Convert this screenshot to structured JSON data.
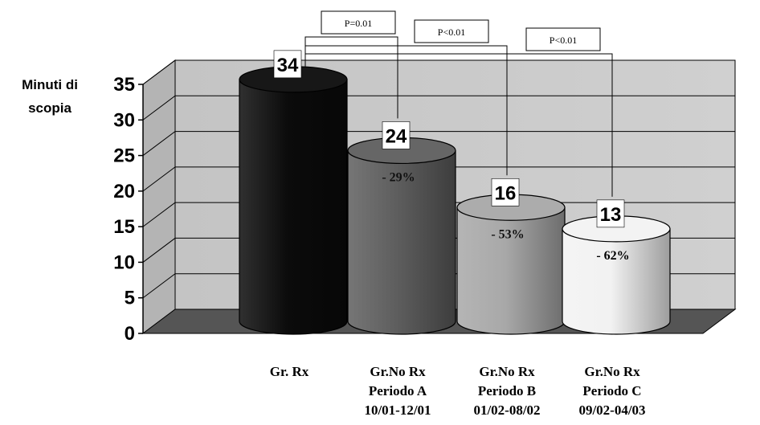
{
  "chart_data": {
    "type": "bar",
    "ylabel": [
      "Minuti di",
      "scopia"
    ],
    "ylim": [
      0,
      35
    ],
    "yticks": [
      0,
      5,
      10,
      15,
      20,
      25,
      30,
      35
    ],
    "grid": true,
    "categories": [
      [
        "Gr. Rx"
      ],
      [
        "Gr.No Rx",
        "Periodo A",
        "10/01-12/01"
      ],
      [
        "Gr.No Rx",
        "Periodo B",
        "01/02-08/02"
      ],
      [
        "Gr.No Rx",
        "Periodo C",
        "09/02-04/03"
      ]
    ],
    "values": [
      34,
      24,
      16,
      13
    ],
    "percent_labels": [
      "",
      "- 29%",
      "- 53%",
      "- 62%"
    ],
    "bar_colors": [
      "#0b0b0b",
      "#5e5e5e",
      "#a8a8a8",
      "#f2f2f2"
    ],
    "comparisons": [
      {
        "from": 0,
        "to": 1,
        "label": "P=0.01"
      },
      {
        "from": 0,
        "to": 2,
        "label": "P<0.01"
      },
      {
        "from": 0,
        "to": 3,
        "label": "P<0.01"
      }
    ]
  }
}
